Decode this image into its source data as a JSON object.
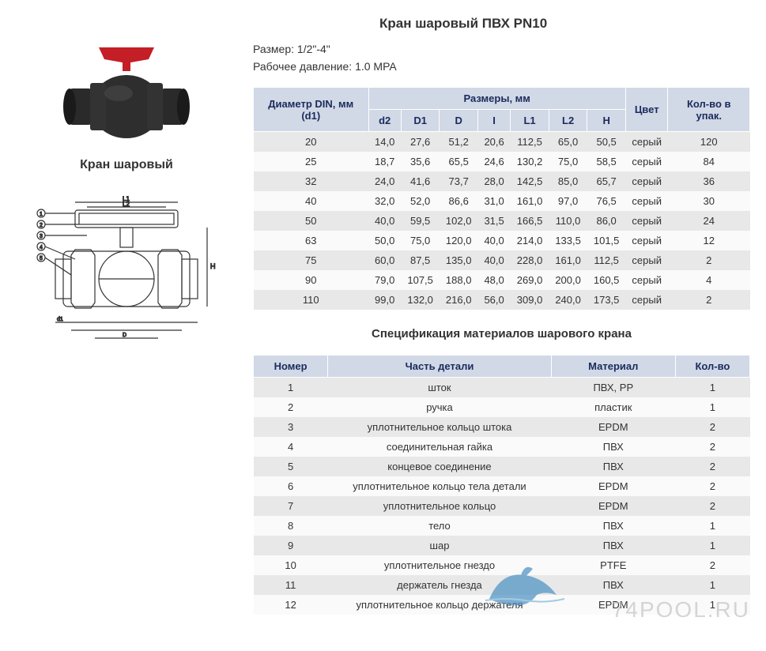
{
  "title": "Кран шаровый ПВХ PN10",
  "size_label": "Размер:",
  "size_value": "1/2\"-4\"",
  "pressure_label": "Рабочее давление:",
  "pressure_value": "1.0 MPA",
  "product_label": "Кран шаровый",
  "dims_table": {
    "header_main": [
      "Диаметр DIN, мм (d1)",
      "Размеры, мм",
      "Цвет",
      "Кол-во в упак."
    ],
    "header_sub": [
      "d2",
      "D1",
      "D",
      "I",
      "L1",
      "L2",
      "H"
    ],
    "rows": [
      [
        "20",
        "14,0",
        "27,6",
        "51,2",
        "20,6",
        "112,5",
        "65,0",
        "50,5",
        "серый",
        "120"
      ],
      [
        "25",
        "18,7",
        "35,6",
        "65,5",
        "24,6",
        "130,2",
        "75,0",
        "58,5",
        "серый",
        "84"
      ],
      [
        "32",
        "24,0",
        "41,6",
        "73,7",
        "28,0",
        "142,5",
        "85,0",
        "65,7",
        "серый",
        "36"
      ],
      [
        "40",
        "32,0",
        "52,0",
        "86,6",
        "31,0",
        "161,0",
        "97,0",
        "76,5",
        "серый",
        "30"
      ],
      [
        "50",
        "40,0",
        "59,5",
        "102,0",
        "31,5",
        "166,5",
        "110,0",
        "86,0",
        "серый",
        "24"
      ],
      [
        "63",
        "50,0",
        "75,0",
        "120,0",
        "40,0",
        "214,0",
        "133,5",
        "101,5",
        "серый",
        "12"
      ],
      [
        "75",
        "60,0",
        "87,5",
        "135,0",
        "40,0",
        "228,0",
        "161,0",
        "112,5",
        "серый",
        "2"
      ],
      [
        "90",
        "79,0",
        "107,5",
        "188,0",
        "48,0",
        "269,0",
        "200,0",
        "160,5",
        "серый",
        "4"
      ],
      [
        "110",
        "99,0",
        "132,0",
        "216,0",
        "56,0",
        "309,0",
        "240,0",
        "173,5",
        "серый",
        "2"
      ]
    ]
  },
  "materials_title": "Спецификация материалов шарового крана",
  "materials_table": {
    "header": [
      "Номер",
      "Часть детали",
      "Материал",
      "Кол-во"
    ],
    "rows": [
      [
        "1",
        "шток",
        "ПВХ, РР",
        "1"
      ],
      [
        "2",
        "ручка",
        "пластик",
        "1"
      ],
      [
        "3",
        "уплотнительное кольцо штока",
        "EPDM",
        "2"
      ],
      [
        "4",
        "соединительная гайка",
        "ПВХ",
        "2"
      ],
      [
        "5",
        "концевое соединение",
        "ПВХ",
        "2"
      ],
      [
        "6",
        "уплотнительное кольцо тела детали",
        "EPDM",
        "2"
      ],
      [
        "7",
        "уплотнительное кольцо",
        "EPDM",
        "2"
      ],
      [
        "8",
        "тело",
        "ПВХ",
        "1"
      ],
      [
        "9",
        "шар",
        "ПВХ",
        "1"
      ],
      [
        "10",
        "уплотнительное гнездо",
        "PTFE",
        "2"
      ],
      [
        "11",
        "держатель гнезда",
        "ПВХ",
        "1"
      ],
      [
        "12",
        "уплотнительное кольцо держателя",
        "EPDM",
        "1"
      ]
    ]
  },
  "watermark": "74POOL.RU",
  "colors": {
    "header_bg": "#d1d8e6",
    "header_text": "#1a2b5c",
    "row_odd": "#e8e8e8",
    "row_even": "#fafafa",
    "handle": "#c41e26",
    "body": "#2e2e2e"
  }
}
